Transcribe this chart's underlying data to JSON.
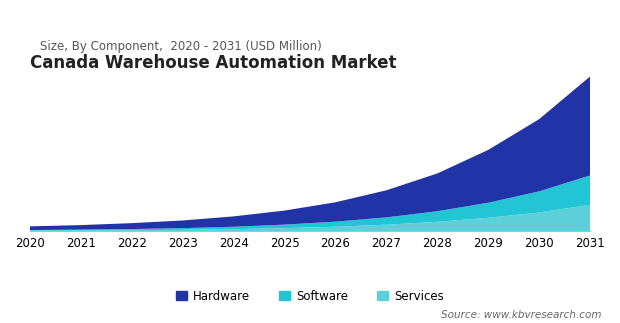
{
  "title": "Canada Warehouse Automation Market",
  "subtitle": "Size, By Component,  2020 - 2031 (USD Million)",
  "years": [
    2020,
    2021,
    2022,
    2023,
    2024,
    2025,
    2026,
    2027,
    2028,
    2029,
    2030,
    2031
  ],
  "hardware": [
    55,
    68,
    88,
    115,
    155,
    210,
    290,
    405,
    565,
    790,
    1080,
    1480
  ],
  "software": [
    10,
    13,
    18,
    25,
    36,
    53,
    76,
    110,
    158,
    225,
    315,
    440
  ],
  "services": [
    9,
    12,
    16,
    22,
    32,
    47,
    68,
    98,
    142,
    202,
    282,
    395
  ],
  "color_hardware": "#2233a8",
  "color_software": "#22c5d4",
  "color_services": "#5bcfda",
  "background_color": "#ffffff",
  "source_text": "Source: www.kbvresearch.com",
  "legend_labels": [
    "Hardware",
    "Software",
    "Services"
  ],
  "title_fontsize": 12,
  "subtitle_fontsize": 8.5,
  "tick_fontsize": 8.5,
  "legend_fontsize": 8.5,
  "source_fontsize": 7.5
}
